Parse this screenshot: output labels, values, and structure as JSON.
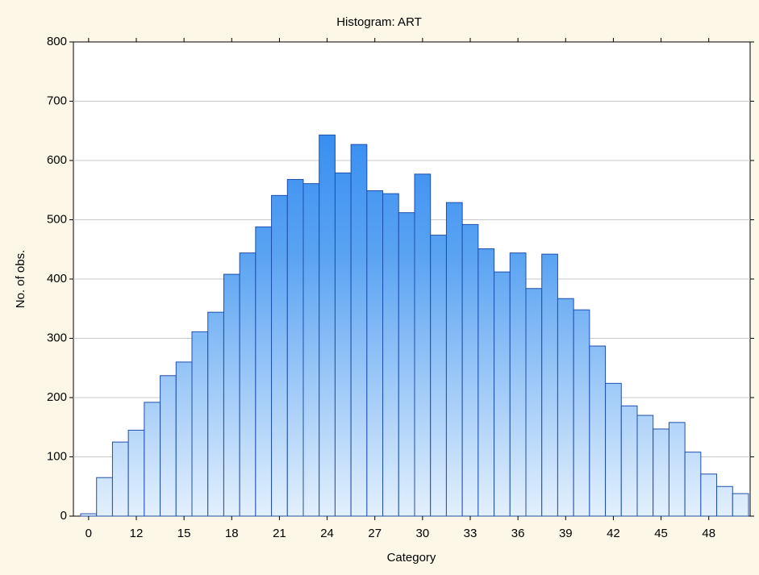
{
  "chart_data": {
    "type": "bar",
    "title": "Histogram: ART",
    "x_label": "Category",
    "y_label": "No. of obs.",
    "categories": [
      "0",
      null,
      null,
      "12",
      null,
      null,
      "15",
      null,
      null,
      "18",
      null,
      null,
      "21",
      null,
      null,
      "24",
      null,
      null,
      "27",
      null,
      null,
      "30",
      null,
      null,
      "33",
      null,
      null,
      "36",
      null,
      null,
      "39",
      null,
      null,
      "42",
      null,
      null,
      "45",
      null,
      null,
      "48",
      null,
      null
    ],
    "values": [
      4,
      65,
      125,
      145,
      192,
      237,
      260,
      311,
      344,
      408,
      444,
      488,
      541,
      568,
      561,
      643,
      579,
      627,
      549,
      544,
      512,
      577,
      474,
      529,
      492,
      451,
      412,
      444,
      384,
      442,
      367,
      348,
      287,
      224,
      186,
      170,
      147,
      158,
      108,
      71,
      50,
      38
    ],
    "color": "#3a8ef0",
    "edge_color": "#1e4fae",
    "ylim": [
      0,
      800
    ],
    "yticks": [
      0,
      100,
      200,
      300,
      400,
      500,
      600,
      700,
      800
    ],
    "grid": true
  }
}
